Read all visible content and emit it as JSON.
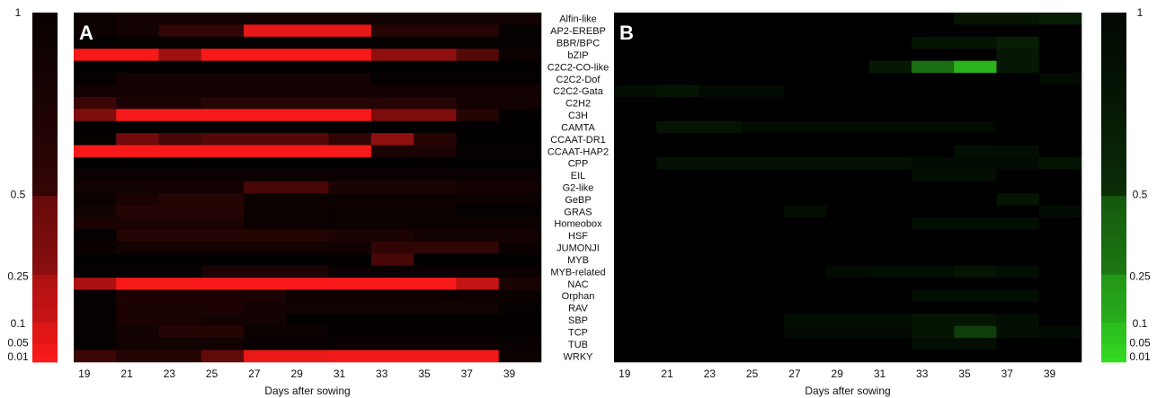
{
  "chart_data": [
    {
      "type": "heatmap",
      "panel_label": "A",
      "xlabel": "Days after sowing",
      "x": [
        19,
        20,
        21,
        22,
        23,
        24,
        25,
        26,
        27,
        28,
        29,
        30,
        31,
        32,
        33,
        34,
        35,
        36,
        37,
        38,
        39,
        40
      ],
      "x_tick_labels": [
        "19",
        "21",
        "23",
        "25",
        "27",
        "29",
        "31",
        "33",
        "35",
        "37",
        "39"
      ],
      "rows": [
        "Alfin-like",
        "AP2-EREBP",
        "BBR/BPC",
        "bZIP",
        "C2C2-CO-like",
        "C2C2-Dof",
        "C2C2-Gata",
        "C2H2",
        "C3H",
        "CAMTA",
        "CCAAT-DR1",
        "CCAAT-HAP2",
        "CPP",
        "EIL",
        "G2-like",
        "GeBP",
        "GRAS",
        "Homeobox",
        "HSF",
        "JUMONJI",
        "MYB",
        "MYB-related",
        "NAC",
        "Orphan",
        "RAV",
        "SBP",
        "TCP",
        "TUB",
        "WRKY"
      ],
      "scale": "p-value",
      "colorbar_ticks": [
        "1",
        "0.5",
        "0.25",
        "0.1",
        "0.05",
        "0.01"
      ],
      "color": "#ff1a1a",
      "value_runs": [
        [
          [
            0,
            2,
            0.85
          ],
          [
            2,
            22,
            0.8
          ]
        ],
        [
          [
            0,
            2,
            0.85
          ],
          [
            2,
            4,
            0.8
          ],
          [
            4,
            8,
            0.65
          ],
          [
            8,
            14,
            0.06
          ],
          [
            14,
            20,
            0.7
          ],
          [
            20,
            22,
            0.9
          ]
        ],
        [
          [
            0,
            22,
            0.9
          ]
        ],
        [
          [
            0,
            4,
            0.02
          ],
          [
            4,
            6,
            0.25
          ],
          [
            6,
            14,
            0.02
          ],
          [
            14,
            18,
            0.3
          ],
          [
            18,
            20,
            0.5
          ],
          [
            20,
            22,
            0.85
          ]
        ],
        [
          [
            0,
            22,
            0.95
          ]
        ],
        [
          [
            0,
            2,
            0.9
          ],
          [
            2,
            14,
            0.8
          ],
          [
            14,
            22,
            0.9
          ]
        ],
        [
          [
            0,
            22,
            0.8
          ]
        ],
        [
          [
            0,
            2,
            0.6
          ],
          [
            2,
            6,
            0.75
          ],
          [
            6,
            18,
            0.7
          ],
          [
            18,
            22,
            0.8
          ]
        ],
        [
          [
            0,
            2,
            0.35
          ],
          [
            2,
            14,
            0.02
          ],
          [
            14,
            18,
            0.35
          ],
          [
            18,
            20,
            0.7
          ],
          [
            20,
            22,
            0.95
          ]
        ],
        [
          [
            0,
            22,
            0.95
          ]
        ],
        [
          [
            0,
            2,
            0.9
          ],
          [
            2,
            4,
            0.4
          ],
          [
            4,
            6,
            0.55
          ],
          [
            6,
            12,
            0.5
          ],
          [
            12,
            14,
            0.65
          ],
          [
            14,
            16,
            0.3
          ],
          [
            16,
            18,
            0.7
          ],
          [
            18,
            22,
            0.95
          ]
        ],
        [
          [
            0,
            14,
            0.02
          ],
          [
            14,
            18,
            0.75
          ],
          [
            18,
            22,
            0.9
          ]
        ],
        [
          [
            0,
            22,
            0.95
          ]
        ],
        [
          [
            0,
            22,
            0.85
          ]
        ],
        [
          [
            0,
            8,
            0.8
          ],
          [
            8,
            12,
            0.55
          ],
          [
            12,
            18,
            0.75
          ],
          [
            18,
            22,
            0.8
          ]
        ],
        [
          [
            0,
            2,
            0.85
          ],
          [
            2,
            4,
            0.75
          ],
          [
            4,
            8,
            0.7
          ],
          [
            8,
            22,
            0.85
          ]
        ],
        [
          [
            0,
            2,
            0.8
          ],
          [
            2,
            8,
            0.7
          ],
          [
            8,
            12,
            0.85
          ],
          [
            12,
            18,
            0.85
          ],
          [
            18,
            22,
            0.9
          ]
        ],
        [
          [
            0,
            2,
            0.75
          ],
          [
            2,
            8,
            0.75
          ],
          [
            8,
            12,
            0.85
          ],
          [
            12,
            22,
            0.85
          ]
        ],
        [
          [
            0,
            2,
            0.9
          ],
          [
            2,
            12,
            0.7
          ],
          [
            12,
            16,
            0.75
          ],
          [
            16,
            22,
            0.8
          ]
        ],
        [
          [
            0,
            2,
            0.85
          ],
          [
            2,
            4,
            0.8
          ],
          [
            4,
            14,
            0.8
          ],
          [
            14,
            20,
            0.65
          ],
          [
            20,
            22,
            0.85
          ]
        ],
        [
          [
            0,
            14,
            0.95
          ],
          [
            14,
            16,
            0.55
          ],
          [
            16,
            22,
            0.95
          ]
        ],
        [
          [
            0,
            6,
            0.9
          ],
          [
            6,
            12,
            0.75
          ],
          [
            12,
            22,
            0.85
          ]
        ],
        [
          [
            0,
            2,
            0.22
          ],
          [
            2,
            18,
            0.02
          ],
          [
            18,
            20,
            0.15
          ],
          [
            20,
            22,
            0.75
          ]
        ],
        [
          [
            0,
            2,
            0.9
          ],
          [
            2,
            10,
            0.75
          ],
          [
            10,
            22,
            0.85
          ]
        ],
        [
          [
            0,
            2,
            0.9
          ],
          [
            2,
            8,
            0.75
          ],
          [
            8,
            20,
            0.8
          ],
          [
            20,
            22,
            0.9
          ]
        ],
        [
          [
            0,
            2,
            0.9
          ],
          [
            2,
            6,
            0.75
          ],
          [
            6,
            10,
            0.8
          ],
          [
            10,
            22,
            0.92
          ]
        ],
        [
          [
            0,
            2,
            0.9
          ],
          [
            2,
            4,
            0.8
          ],
          [
            4,
            8,
            0.7
          ],
          [
            8,
            12,
            0.85
          ],
          [
            12,
            22,
            0.92
          ]
        ],
        [
          [
            0,
            2,
            0.9
          ],
          [
            2,
            8,
            0.8
          ],
          [
            8,
            22,
            0.88
          ]
        ],
        [
          [
            0,
            2,
            0.6
          ],
          [
            2,
            6,
            0.7
          ],
          [
            6,
            8,
            0.45
          ],
          [
            8,
            12,
            0.05
          ],
          [
            12,
            20,
            0.03
          ],
          [
            20,
            22,
            0.85
          ]
        ]
      ]
    },
    {
      "type": "heatmap",
      "panel_label": "B",
      "xlabel": "Days after sowing",
      "x": [
        19,
        20,
        21,
        22,
        23,
        24,
        25,
        26,
        27,
        28,
        29,
        30,
        31,
        32,
        33,
        34,
        35,
        36,
        37,
        38,
        39,
        40
      ],
      "x_tick_labels": [
        "19",
        "21",
        "23",
        "25",
        "27",
        "29",
        "31",
        "33",
        "35",
        "37",
        "39"
      ],
      "rows": [
        "Alfin-like",
        "AP2-EREBP",
        "BBR/BPC",
        "bZIP",
        "C2C2-CO-like",
        "C2C2-Dof",
        "C2C2-Gata",
        "C2H2",
        "C3H",
        "CAMTA",
        "CCAAT-DR1",
        "CCAAT-HAP2",
        "CPP",
        "EIL",
        "G2-like",
        "GeBP",
        "GRAS",
        "Homeobox",
        "HSF",
        "JUMONJI",
        "MYB",
        "MYB-related",
        "NAC",
        "Orphan",
        "RAV",
        "SBP",
        "TCP",
        "TUB",
        "WRKY"
      ],
      "scale": "p-value",
      "colorbar_ticks": [
        "1",
        "0.5",
        "0.25",
        "0.1",
        "0.05",
        "0.01"
      ],
      "color": "#33dd22",
      "value_runs": [
        [
          [
            0,
            16,
            0.98
          ],
          [
            16,
            20,
            0.78
          ],
          [
            20,
            22,
            0.72
          ]
        ],
        [
          [
            0,
            22,
            0.98
          ]
        ],
        [
          [
            0,
            14,
            0.98
          ],
          [
            14,
            18,
            0.78
          ],
          [
            18,
            20,
            0.72
          ],
          [
            20,
            22,
            0.98
          ]
        ],
        [
          [
            0,
            18,
            0.98
          ],
          [
            18,
            20,
            0.75
          ],
          [
            20,
            22,
            0.98
          ]
        ],
        [
          [
            0,
            12,
            0.98
          ],
          [
            12,
            14,
            0.75
          ],
          [
            14,
            16,
            0.35
          ],
          [
            16,
            18,
            0.12
          ],
          [
            18,
            20,
            0.75
          ],
          [
            20,
            22,
            0.98
          ]
        ],
        [
          [
            0,
            20,
            0.98
          ],
          [
            20,
            22,
            0.85
          ]
        ],
        [
          [
            0,
            2,
            0.82
          ],
          [
            2,
            4,
            0.78
          ],
          [
            4,
            8,
            0.85
          ],
          [
            8,
            22,
            0.98
          ]
        ],
        [
          [
            0,
            22,
            0.98
          ]
        ],
        [
          [
            0,
            22,
            0.98
          ]
        ],
        [
          [
            0,
            2,
            0.98
          ],
          [
            2,
            6,
            0.78
          ],
          [
            6,
            18,
            0.86
          ],
          [
            18,
            22,
            0.98
          ]
        ],
        [
          [
            0,
            22,
            0.98
          ]
        ],
        [
          [
            0,
            16,
            0.98
          ],
          [
            16,
            20,
            0.82
          ],
          [
            20,
            22,
            0.98
          ]
        ],
        [
          [
            0,
            2,
            0.98
          ],
          [
            2,
            14,
            0.8
          ],
          [
            14,
            20,
            0.85
          ],
          [
            20,
            22,
            0.78
          ]
        ],
        [
          [
            0,
            14,
            0.98
          ],
          [
            14,
            18,
            0.82
          ],
          [
            18,
            22,
            0.98
          ]
        ],
        [
          [
            0,
            22,
            0.98
          ]
        ],
        [
          [
            0,
            18,
            0.98
          ],
          [
            18,
            20,
            0.78
          ],
          [
            20,
            22,
            0.98
          ]
        ],
        [
          [
            0,
            8,
            0.98
          ],
          [
            8,
            10,
            0.82
          ],
          [
            10,
            20,
            0.98
          ],
          [
            20,
            22,
            0.85
          ]
        ],
        [
          [
            0,
            14,
            0.98
          ],
          [
            14,
            20,
            0.82
          ],
          [
            20,
            22,
            0.98
          ]
        ],
        [
          [
            0,
            22,
            0.98
          ]
        ],
        [
          [
            0,
            22,
            0.98
          ]
        ],
        [
          [
            0,
            22,
            0.98
          ]
        ],
        [
          [
            0,
            10,
            0.98
          ],
          [
            10,
            12,
            0.85
          ],
          [
            12,
            16,
            0.82
          ],
          [
            16,
            18,
            0.78
          ],
          [
            18,
            20,
            0.82
          ],
          [
            20,
            22,
            0.98
          ]
        ],
        [
          [
            0,
            22,
            0.98
          ]
        ],
        [
          [
            0,
            14,
            0.98
          ],
          [
            14,
            20,
            0.82
          ],
          [
            20,
            22,
            0.98
          ]
        ],
        [
          [
            0,
            22,
            0.98
          ]
        ],
        [
          [
            0,
            8,
            0.98
          ],
          [
            8,
            14,
            0.82
          ],
          [
            14,
            18,
            0.78
          ],
          [
            18,
            20,
            0.82
          ],
          [
            20,
            22,
            0.98
          ]
        ],
        [
          [
            0,
            8,
            0.98
          ],
          [
            8,
            14,
            0.86
          ],
          [
            14,
            16,
            0.78
          ],
          [
            16,
            18,
            0.55
          ],
          [
            18,
            20,
            0.82
          ],
          [
            20,
            22,
            0.85
          ]
        ],
        [
          [
            0,
            14,
            0.98
          ],
          [
            14,
            18,
            0.82
          ],
          [
            18,
            22,
            0.98
          ]
        ],
        [
          [
            0,
            22,
            0.98
          ]
        ]
      ]
    }
  ]
}
